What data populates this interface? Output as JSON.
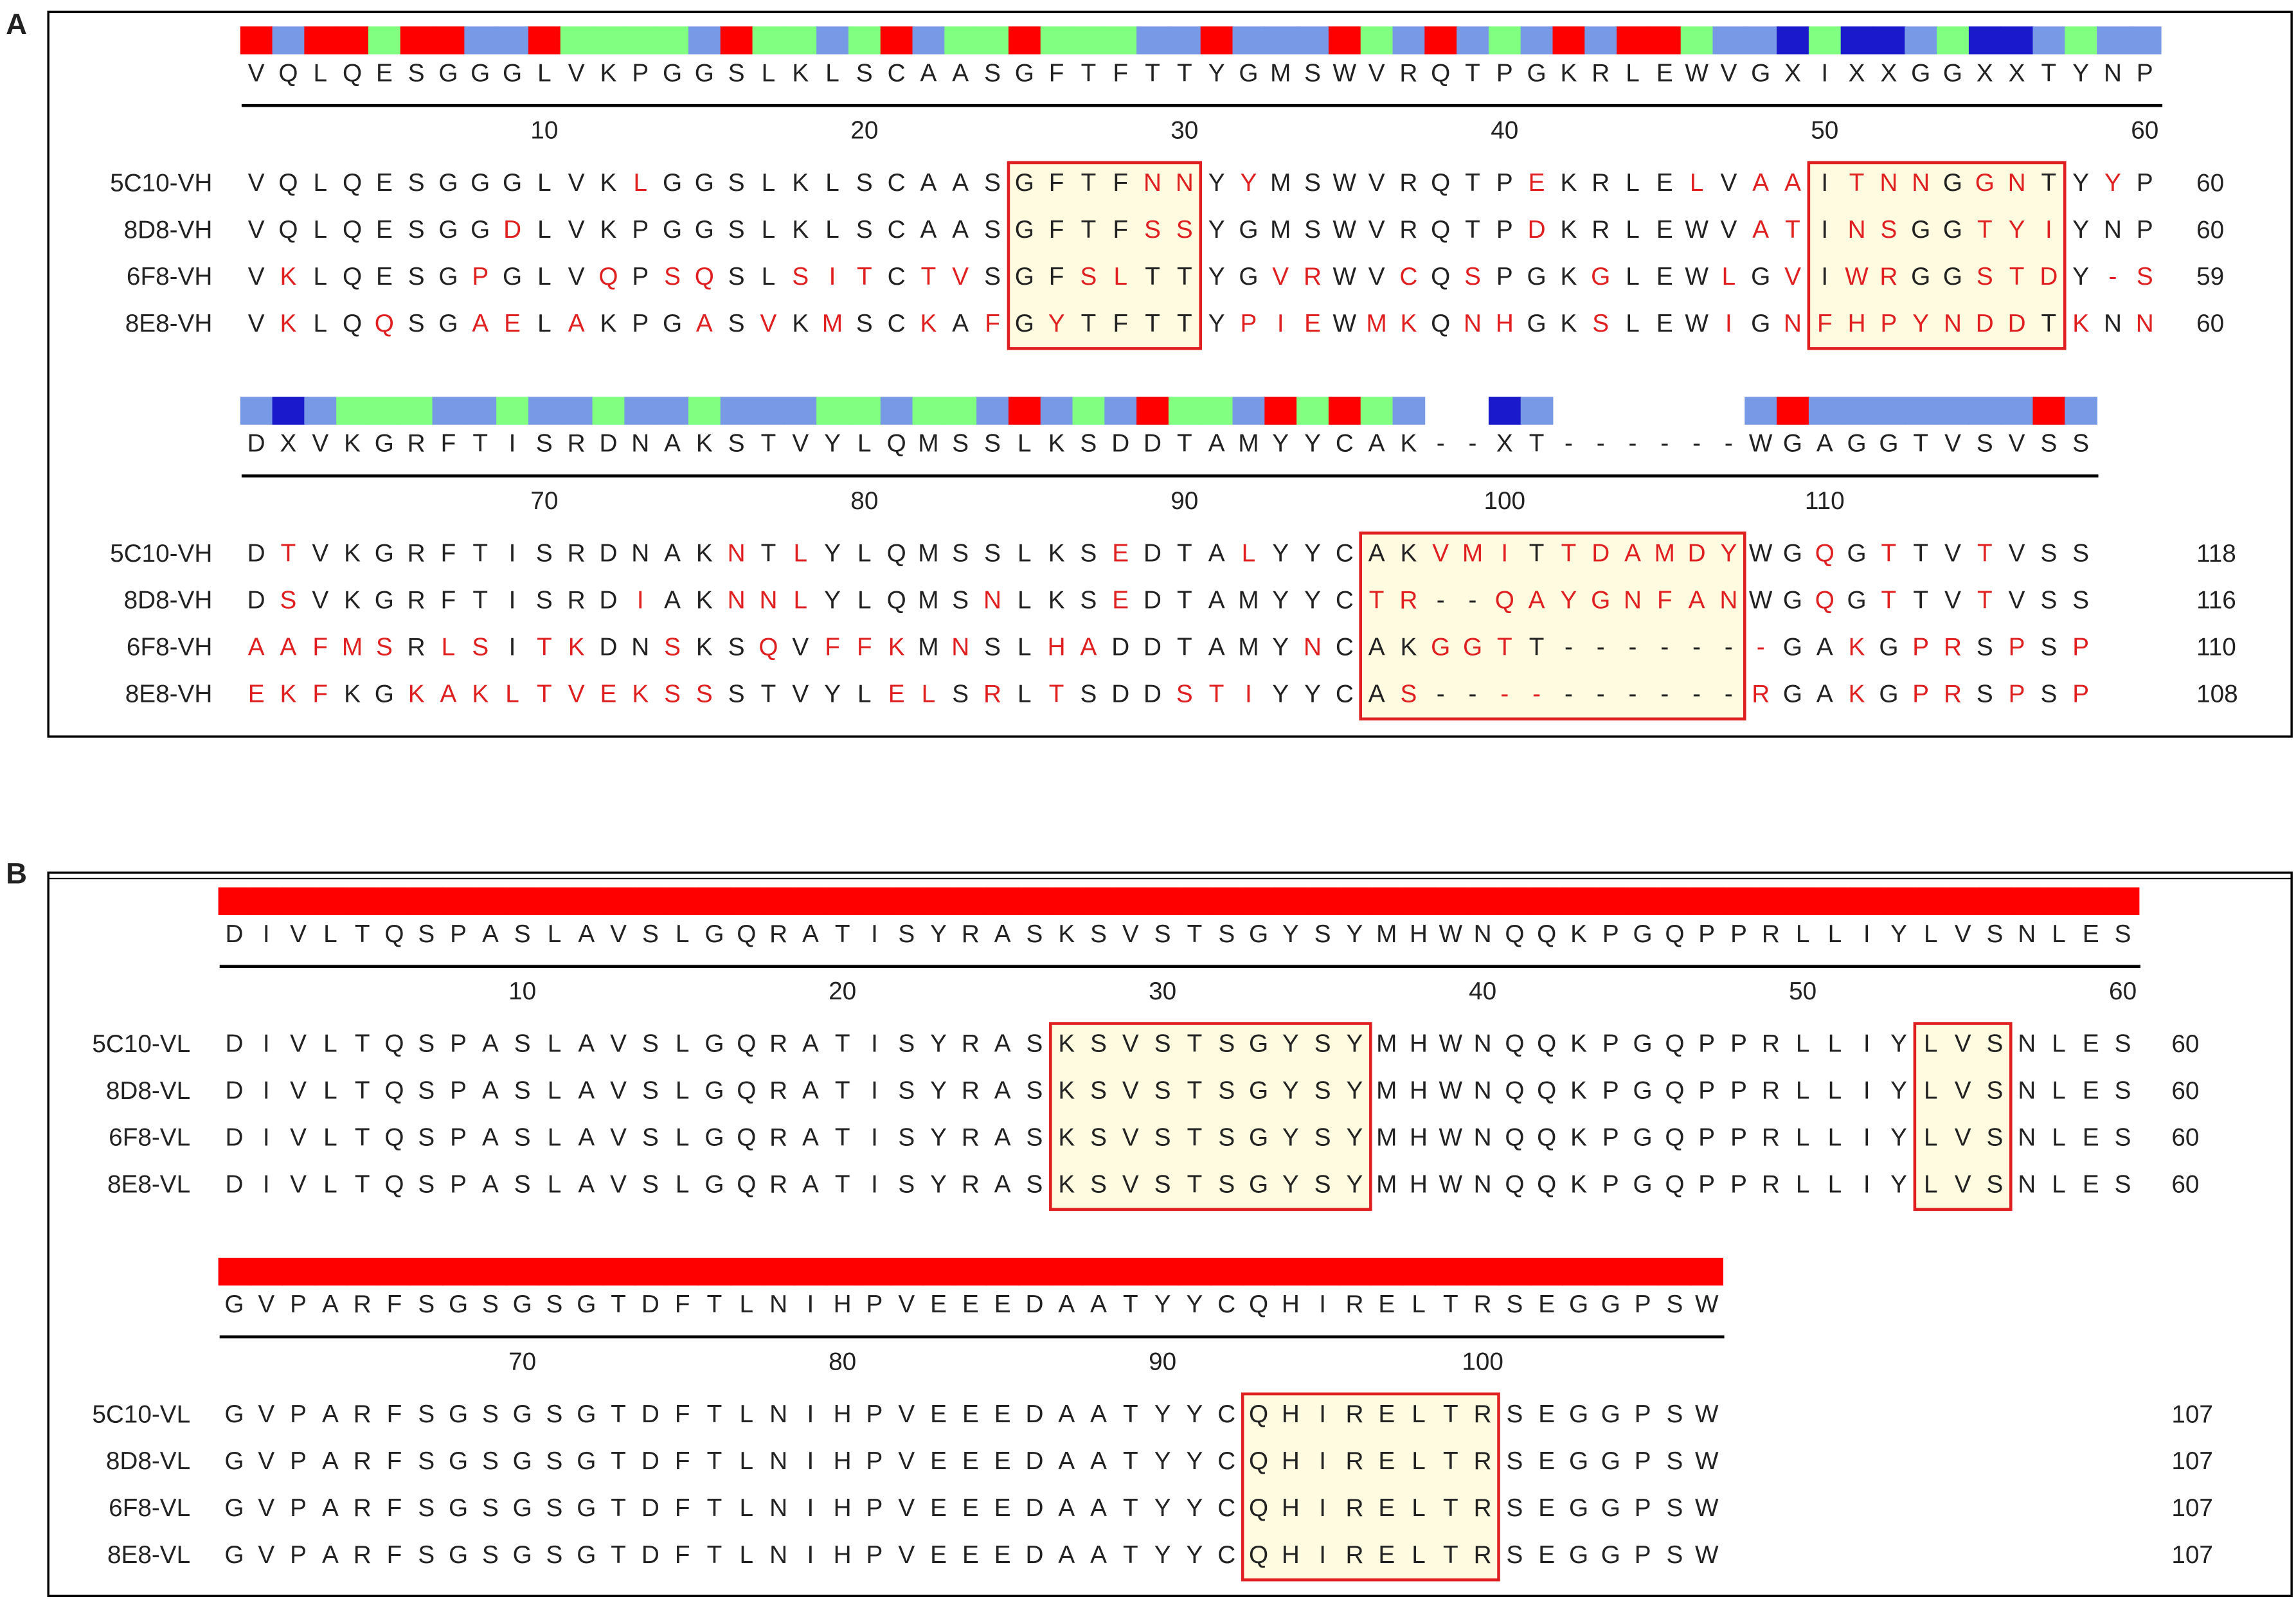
{
  "panels": [
    {
      "label": "A",
      "blocks": [
        {
          "consensus": "VQLQESGGGLVKPGGSLKLSCAASGFTFTTYGMSWVRQTPGKRLEWVGXIXXGGXXTYNP",
          "ruler": [
            10,
            20,
            30,
            40,
            50,
            60
          ],
          "rows": [
            {
              "name": "5C10-VH",
              "sequence": "VQLQESGGGLVKLGGSLKLSCAASGFTFNNYYMSWVRQTPEKRLELVAAITNNGGNTYYP",
              "end": 60
            },
            {
              "name": "8D8-VH",
              "sequence": "VQLQESGGDLVKPGGSLKLSCAASGFTFSSYGMSWVRQTPDKRLEWVATINSGGTYIYNP",
              "end": 60
            },
            {
              "name": "6F8-VH",
              "sequence": "VKLQESGPGLVQPSQSLSITCTVSGFSLTTYGVRWVCQSPGKGLEWLGVIWRGGSTDY-S",
              "end": 59
            },
            {
              "name": "8E8-VH",
              "sequence": "VKLQQSGAELAKPGASVKMSCKAFGYTFTTYPIEWMKQNHGKSLEWIGNFHPYNDDTKNN",
              "end": 60
            }
          ]
        },
        {
          "consensus": "DXVKGRFTISRDNAKSTVYLQMSSLKSDDTAMYYCAK--XT------WGAGGTVSVSS",
          "ruler": [
            70,
            80,
            90,
            100,
            110
          ],
          "rows": [
            {
              "name": "5C10-VH",
              "sequence": "DTVKGRFTISRDNAKNTLYLQMSSLKSEDTALYYCAKVMITTDAMDYWGQGTTVTVSS",
              "end": 118
            },
            {
              "name": "8D8-VH",
              "sequence": "DSVKGRFTISRDIAKNNLYLQMSNLKSEDTAMYYCTR--QAYGNFANWGQGTTVTVSS",
              "end": 116
            },
            {
              "name": "6F8-VH",
              "sequence": "AAFMSRLSITKDNSKSQVFFKMNSLHADDTAMYNCAKGGTT-------GAKGPRSPSP",
              "end": 110
            },
            {
              "name": "8E8-VH",
              "sequence": "EKFKGKAKLTVEKSSSTVYLELSRLTSDDSTIYYCAS----------RGAKGPRSPSP",
              "end": 108
            }
          ]
        }
      ]
    },
    {
      "label": "B",
      "blocks": [
        {
          "consensus": "DIVLTQSPASLAVSLGQRATISYRASKSVSTSGYSYMHWNQQKPGQPPRLLIYLVSNLES",
          "ruler": [
            10,
            20,
            30,
            40,
            50,
            60
          ],
          "rows": [
            {
              "name": "5C10-VL",
              "sequence": "DIVLTQSPASLAVSLGQRATISYRASKSVSTSGYSYMHWNQQKPGQPPRLLIYLVSNLES",
              "end": 60
            },
            {
              "name": "8D8-VL",
              "sequence": "DIVLTQSPASLAVSLGQRATISYRASKSVSTSGYSYMHWNQQKPGQPPRLLIYLVSNLES",
              "end": 60
            },
            {
              "name": "6F8-VL",
              "sequence": "DIVLTQSPASLAVSLGQRATISYRASKSVSTSGYSYMHWNQQKPGQPPRLLIYLVSNLES",
              "end": 60
            },
            {
              "name": "8E8-VL",
              "sequence": "DIVLTQSPASLAVSLGQRATISYRASKSVSTSGYSYMHWNQQKPGQPPRLLIYLVSNLES",
              "end": 60
            }
          ]
        },
        {
          "consensus": "GVPARFSGSGSGTDFTLNIHPVEEEDAATYYCQHIRELTRSEGGPSW",
          "ruler": [
            70,
            80,
            90,
            100
          ],
          "rows": [
            {
              "name": "5C10-VL",
              "sequence": "GVPARFSGSGSGTDFTLNIHPVEEEDAATYYCQHIRELTRSEGGPSW",
              "end": 107
            },
            {
              "name": "8D8-VL",
              "sequence": "GVPARFSGSGSGTDFTLNIHPVEEEDAATYYCQHIRELTRSEGGPSW",
              "end": 107
            },
            {
              "name": "6F8-VL",
              "sequence": "GVPARFSGSGSGTDFTLNIHPVEEEDAATYYCQHIRELTRSEGGPSW",
              "end": 107
            },
            {
              "name": "8E8-VL",
              "sequence": "GVPARFSGSGSGTDFTLNIHPVEEEDAATYYCQHIRELTRSEGGPSW",
              "end": 107
            }
          ]
        }
      ]
    }
  ]
}
